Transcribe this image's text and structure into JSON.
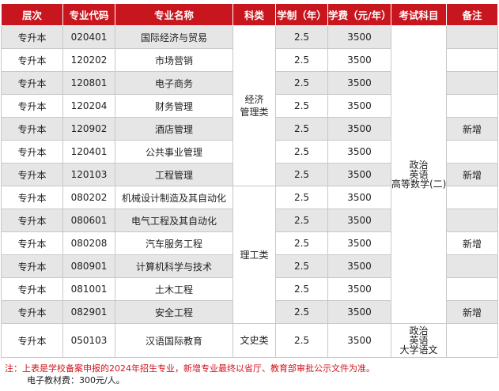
{
  "headers": [
    "层次",
    "专业代码",
    "专业名称",
    "科类",
    "学制（年）",
    "学费（元/年）",
    "考试科目",
    "备注"
  ],
  "rows": [
    {
      "level": "专升本",
      "code": "020401",
      "name": "国际经济与贸易",
      "duration": "2.5",
      "fee": "3500",
      "remark": ""
    },
    {
      "level": "专升本",
      "code": "120202",
      "name": "市场营销",
      "duration": "2.5",
      "fee": "3500",
      "remark": ""
    },
    {
      "level": "专升本",
      "code": "120801",
      "name": "电子商务",
      "duration": "2.5",
      "fee": "3500",
      "remark": ""
    },
    {
      "level": "专升本",
      "code": "120204",
      "name": "财务管理",
      "duration": "2.5",
      "fee": "3500",
      "remark": ""
    },
    {
      "level": "专升本",
      "code": "120902",
      "name": "酒店管理",
      "duration": "2.5",
      "fee": "3500",
      "remark": "新增"
    },
    {
      "level": "专升本",
      "code": "120401",
      "name": "公共事业管理",
      "duration": "2.5",
      "fee": "3500",
      "remark": ""
    },
    {
      "level": "专升本",
      "code": "120103",
      "name": "工程管理",
      "duration": "2.5",
      "fee": "3500",
      "remark": "新增"
    },
    {
      "level": "专升本",
      "code": "080202",
      "name": "机械设计制造及其自动化",
      "duration": "2.5",
      "fee": "3500",
      "remark": ""
    },
    {
      "level": "专升本",
      "code": "080601",
      "name": "电气工程及其自动化",
      "duration": "2.5",
      "fee": "3500",
      "remark": ""
    },
    {
      "level": "专升本",
      "code": "080208",
      "name": "汽车服务工程",
      "duration": "2.5",
      "fee": "3500",
      "remark": "新增"
    },
    {
      "level": "专升本",
      "code": "080901",
      "name": "计算机科学与技术",
      "duration": "2.5",
      "fee": "3500",
      "remark": ""
    },
    {
      "level": "专升本",
      "code": "081001",
      "name": "土木工程",
      "duration": "2.5",
      "fee": "3500",
      "remark": ""
    },
    {
      "level": "专升本",
      "code": "082901",
      "name": "安全工程",
      "duration": "2.5",
      "fee": "3500",
      "remark": "新增"
    },
    {
      "level": "专升本",
      "code": "050103",
      "name": "汉语国际教育",
      "duration": "2.5",
      "fee": "3500",
      "remark": ""
    }
  ],
  "categories": {
    "economics": [
      "经济",
      "管理类"
    ],
    "engineering": "理工类",
    "liberal_arts": "文史类"
  },
  "subjects": {
    "group1": [
      "政治",
      "英语",
      "高等数学(二)"
    ],
    "group2": [
      "政治",
      "英语",
      "大学语文"
    ]
  },
  "notes": {
    "line1": "注：上表是学校备案申报的2024年招生专业，新增专业最终以省厅、教育部审批公示文件为准。",
    "line2": "电子教材费：300元/人。"
  },
  "colors": {
    "header_bg": "#c8161e",
    "stripe": "#e6e6e6",
    "note_red": "#d0141c"
  }
}
